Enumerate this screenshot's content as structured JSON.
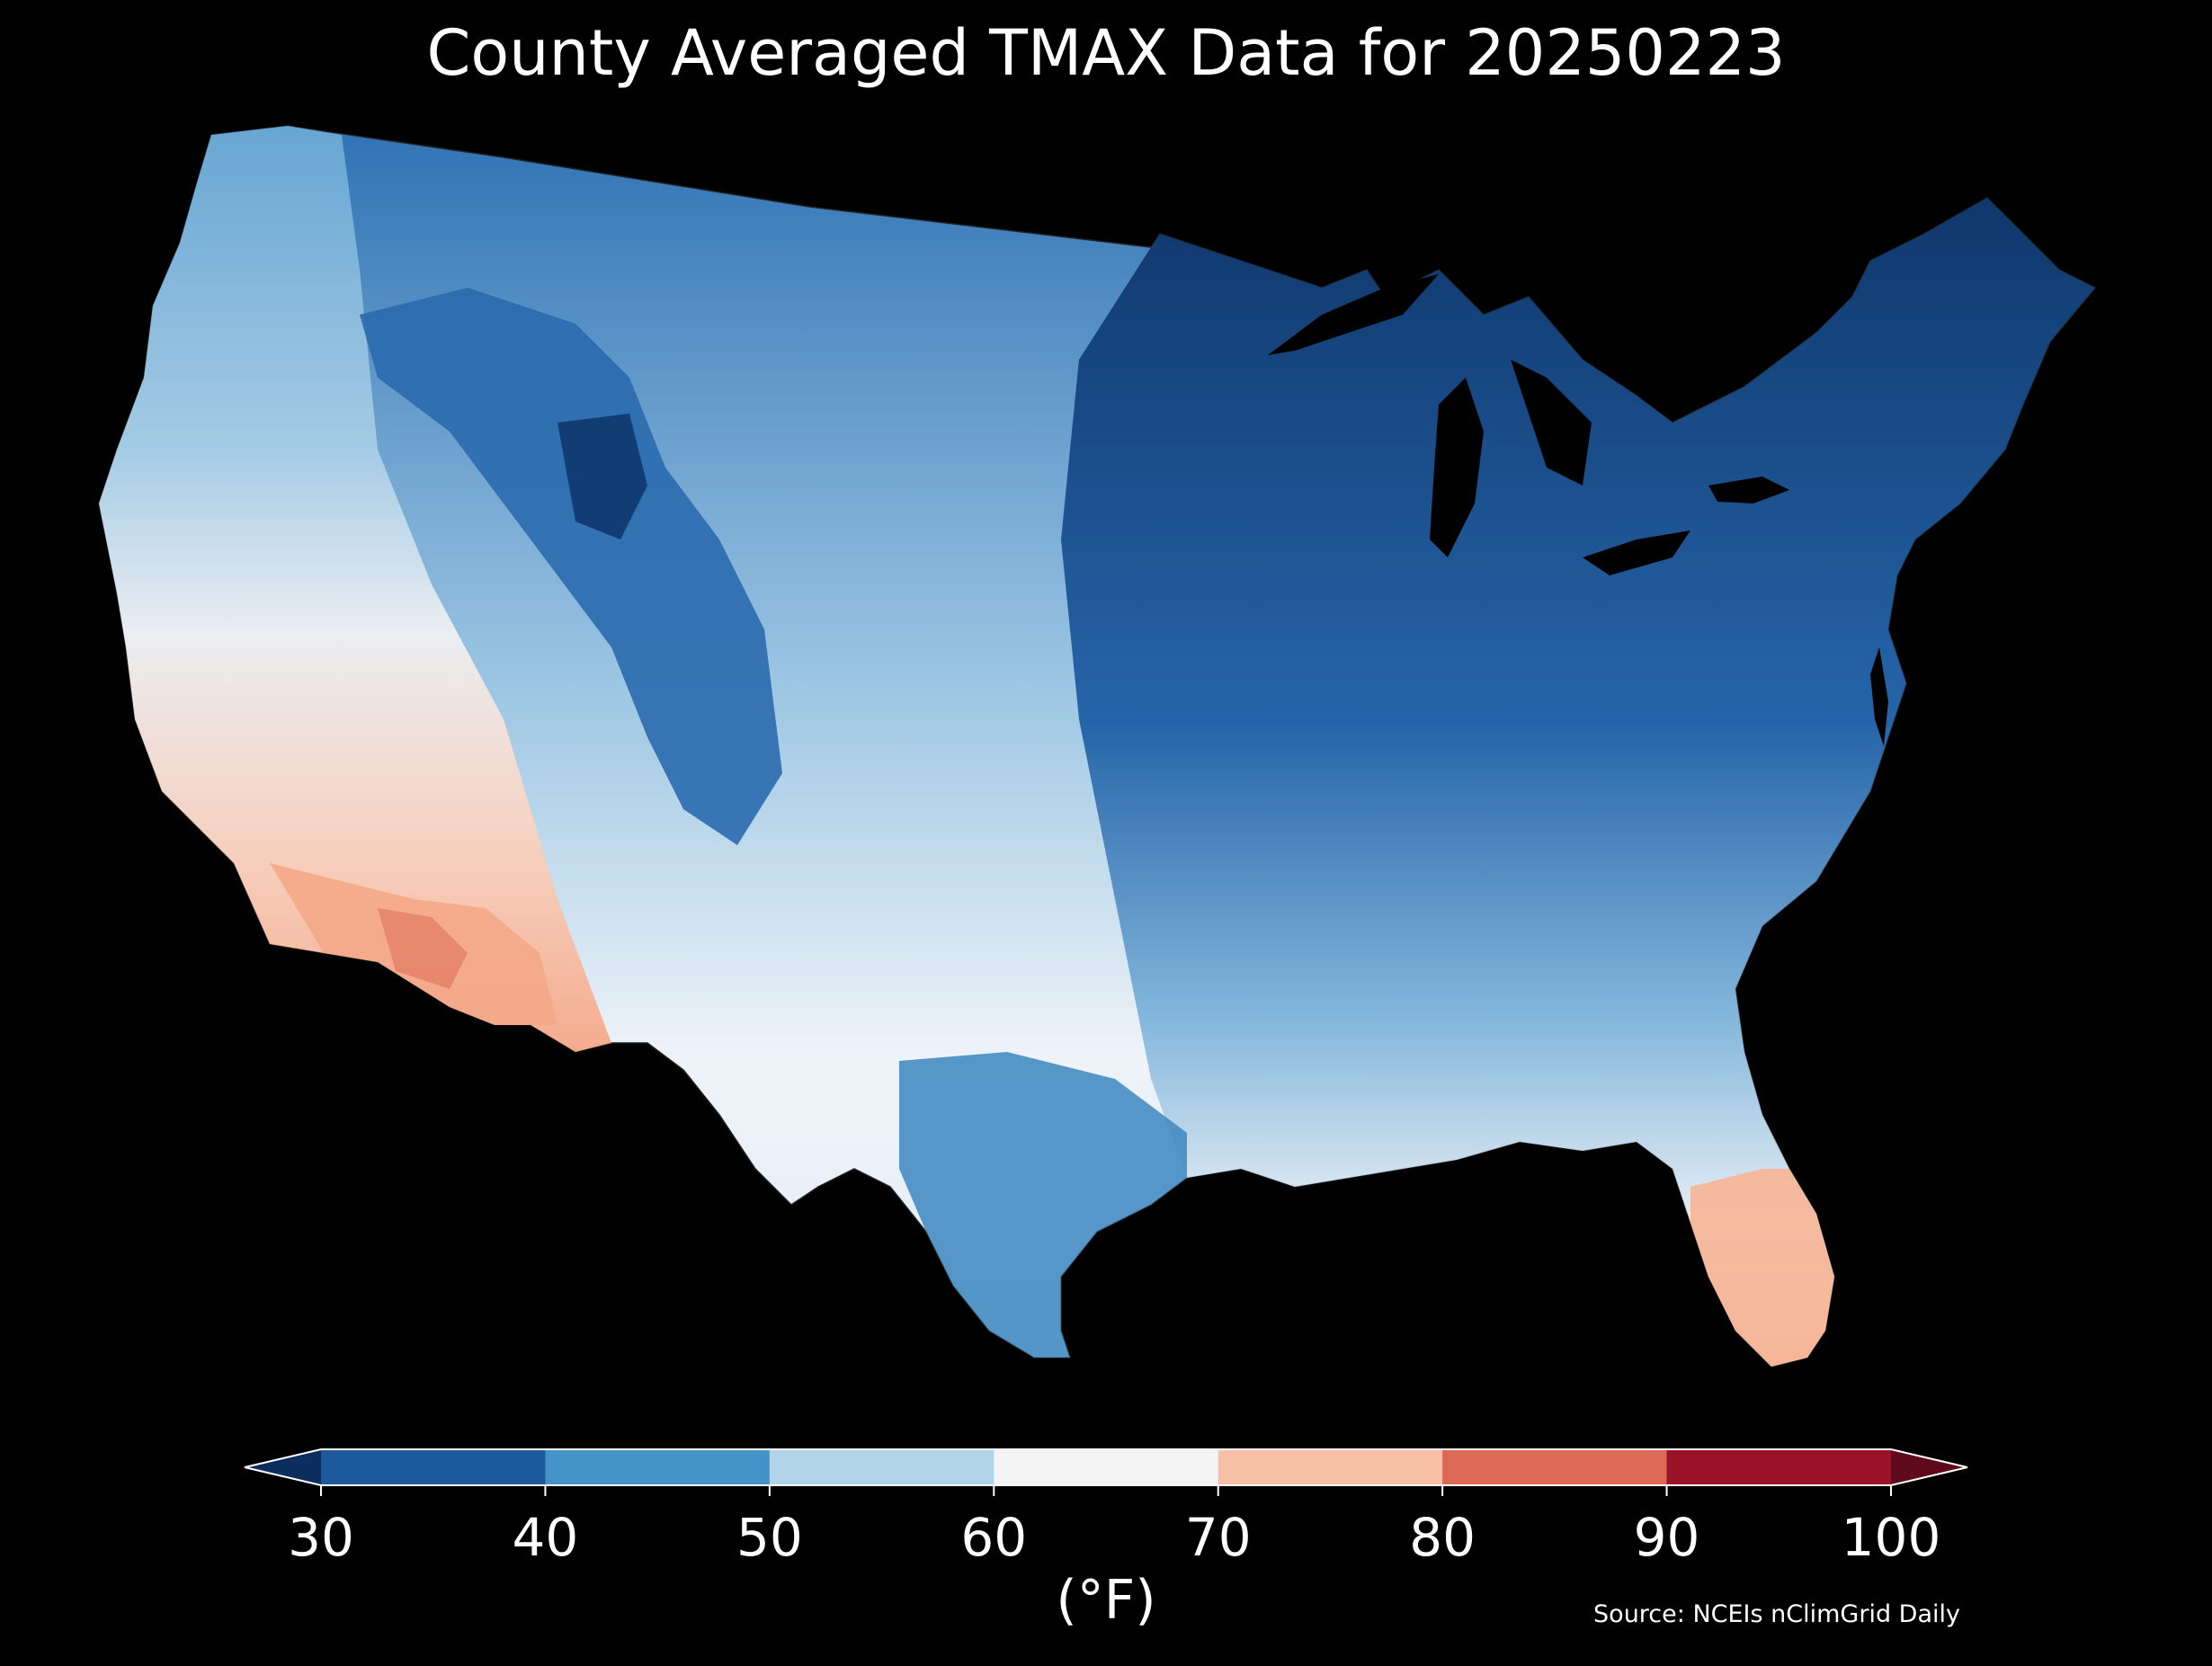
{
  "title": "County Averaged TMAX Data for 20250223",
  "colorbar": {
    "unit_label": "(°F)",
    "ticks": [
      "30",
      "40",
      "50",
      "60",
      "70",
      "80",
      "90",
      "100"
    ],
    "colors": {
      "under": "#0b2e5e",
      "bins": [
        "#1c5a9c",
        "#4592c6",
        "#b2d4e8",
        "#f4f4f4",
        "#f8c0a6",
        "#dc6a54",
        "#9a1328"
      ],
      "over": "#5e0a1c"
    }
  },
  "source": "Source: NCEIs nClimGrid Daily",
  "map_regions": [
    {
      "name": "pacific-northwest",
      "color": "#8fbede"
    },
    {
      "name": "northern-rockies",
      "color": "#2a6aae"
    },
    {
      "name": "great-basin",
      "color": "#c4dced"
    },
    {
      "name": "california",
      "color": "#f7e2d9"
    },
    {
      "name": "desert-southwest",
      "color": "#f4a888"
    },
    {
      "name": "southern-plains",
      "color": "#e8f0f6"
    },
    {
      "name": "texas-gulf",
      "color": "#3c86c0"
    },
    {
      "name": "midwest-great-lakes",
      "color": "#0f3d75"
    },
    {
      "name": "ohio-valley",
      "color": "#1f5fa6"
    },
    {
      "name": "southeast",
      "color": "#d7e7f3"
    },
    {
      "name": "florida",
      "color": "#f6b596"
    },
    {
      "name": "new-england",
      "color": "#0d3468"
    }
  ]
}
